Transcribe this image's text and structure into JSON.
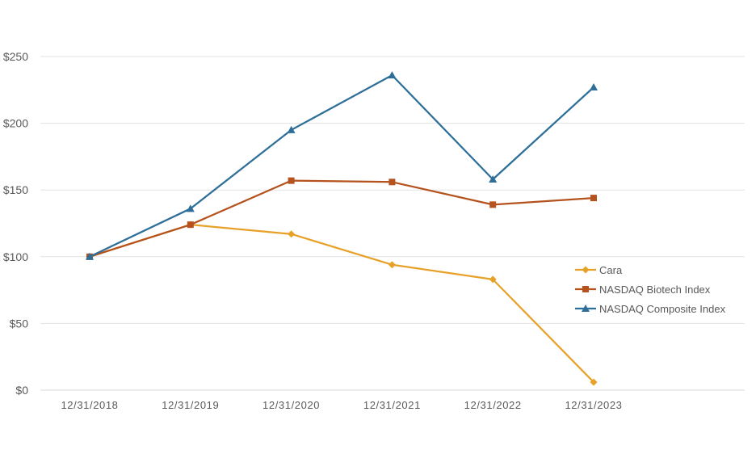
{
  "chart_data": {
    "type": "line",
    "title": "",
    "xlabel": "",
    "ylabel": "",
    "categories": [
      "12/31/2018",
      "12/31/2019",
      "12/31/2020",
      "12/31/2021",
      "12/31/2022",
      "12/31/2023"
    ],
    "ylim": [
      0,
      250
    ],
    "yticks": [
      0,
      50,
      100,
      150,
      200,
      250
    ],
    "ytick_labels": [
      "$0",
      "$50",
      "$100",
      "$150",
      "$200",
      "$250"
    ],
    "grid": true,
    "legend_position": "right",
    "series": [
      {
        "name": "Cara",
        "color": "#E8A128",
        "marker": "diamond",
        "values": [
          100,
          124,
          117,
          94,
          83,
          6
        ]
      },
      {
        "name": "NASDAQ Biotech Index",
        "color": "#B5521D",
        "marker": "square",
        "values": [
          100,
          124,
          157,
          156,
          139,
          144
        ]
      },
      {
        "name": "NASDAQ Composite Index",
        "color": "#2E6F99",
        "marker": "triangle",
        "values": [
          100,
          136,
          195,
          236,
          158,
          227
        ]
      }
    ]
  }
}
